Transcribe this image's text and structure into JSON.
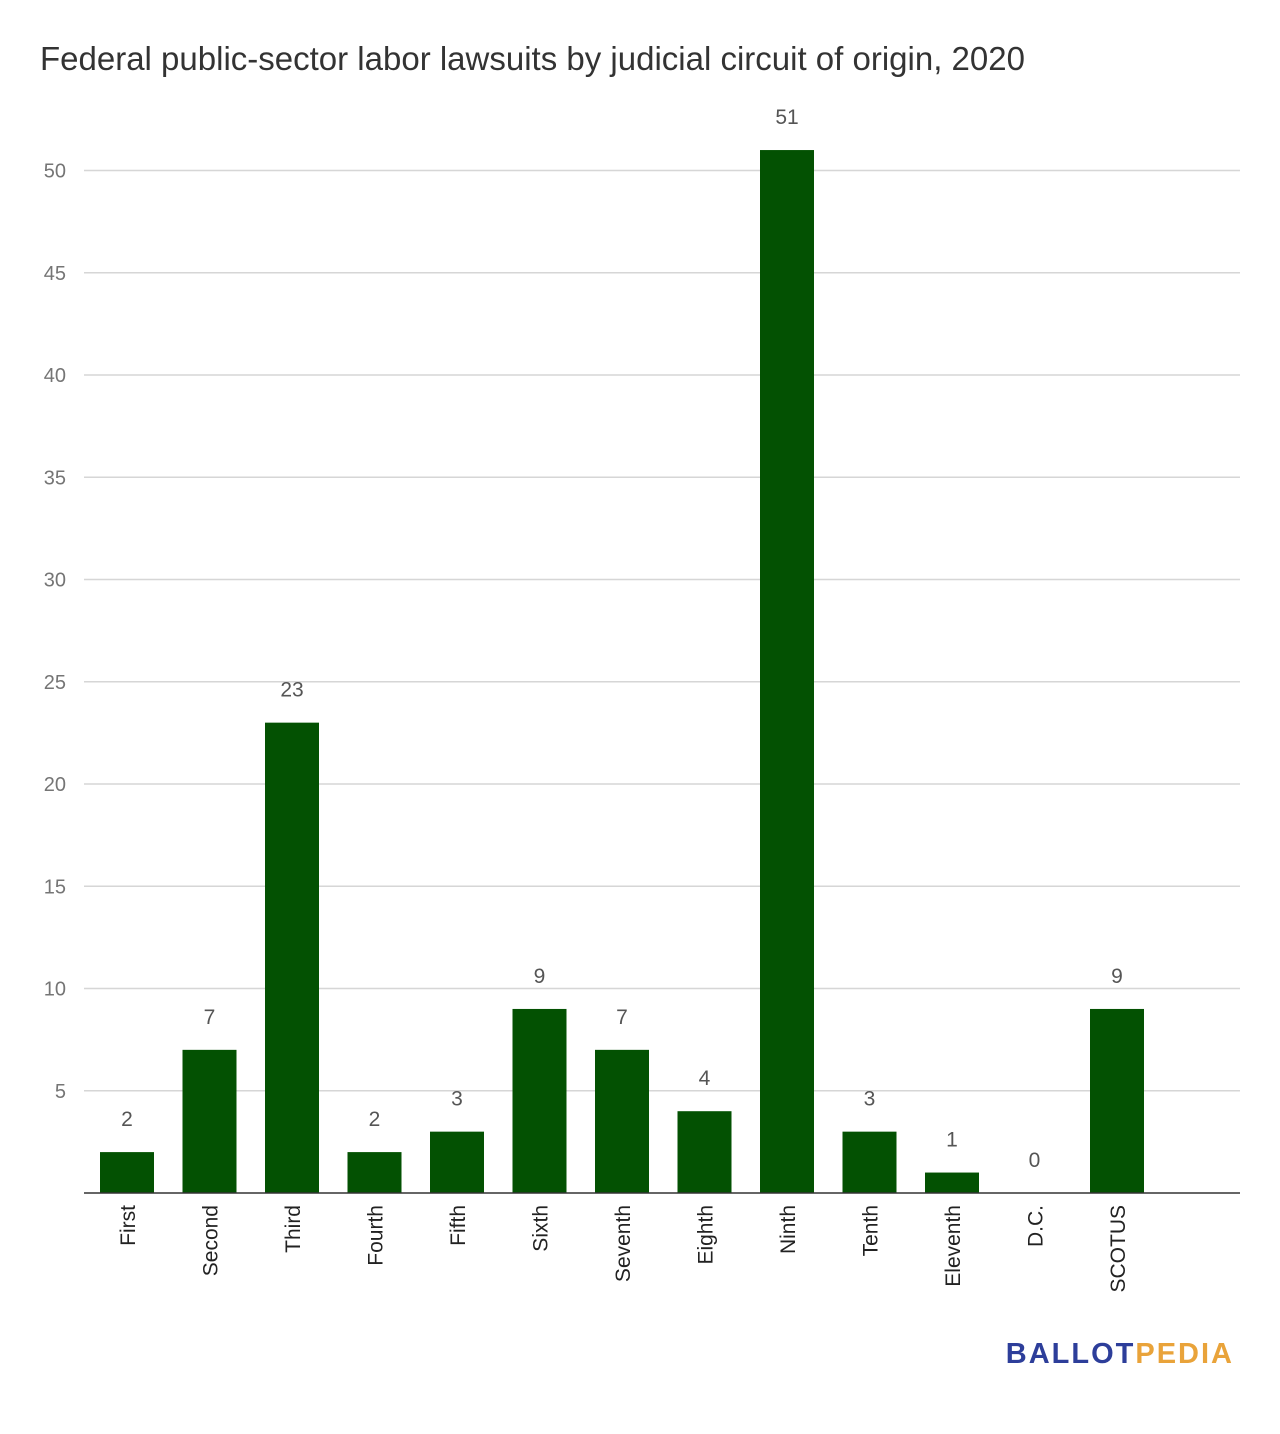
{
  "chart_data": {
    "type": "bar",
    "title": "Federal public-sector labor lawsuits by judicial circuit of origin, 2020",
    "xlabel": "",
    "ylabel": "",
    "categories": [
      "First",
      "Second",
      "Third",
      "Fourth",
      "Fifth",
      "Sixth",
      "Seventh",
      "Eighth",
      "Ninth",
      "Tenth",
      "Eleventh",
      "D.C.",
      "SCOTUS"
    ],
    "values": [
      2,
      7,
      23,
      2,
      3,
      9,
      7,
      4,
      51,
      3,
      1,
      0,
      9
    ],
    "ylim": [
      0,
      52
    ],
    "yticks": [
      5,
      10,
      15,
      20,
      25,
      30,
      35,
      40,
      45,
      50
    ],
    "grid": true,
    "legend": "none",
    "data_labels": true,
    "bar_color": "#035102"
  },
  "logo": {
    "part1": "BALLOT",
    "part2": "PEDIA",
    "color1": "#2d3e9a",
    "color2": "#e9a33a"
  }
}
